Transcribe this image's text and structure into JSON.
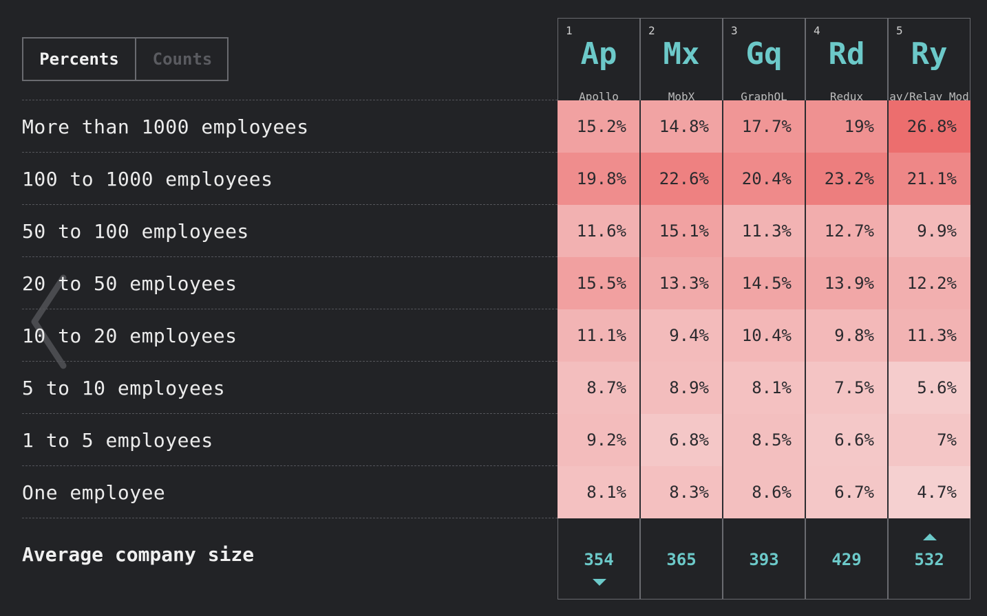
{
  "toggle": {
    "options": [
      "Percents",
      "Counts"
    ],
    "selected": "Percents"
  },
  "chart_data": {
    "type": "table",
    "columns": [
      {
        "rank": "1",
        "abbr": "Ap",
        "name": "Apollo"
      },
      {
        "rank": "2",
        "abbr": "Mx",
        "name": "MobX"
      },
      {
        "rank": "3",
        "abbr": "Gq",
        "name": "GraphQL"
      },
      {
        "rank": "4",
        "abbr": "Rd",
        "name": "Redux"
      },
      {
        "rank": "5",
        "abbr": "Ry",
        "name": "ay/Relay Mod"
      }
    ],
    "rows": [
      {
        "label": "More than 1000 employees",
        "values": [
          "15.2%",
          "14.8%",
          "17.7%",
          "19%",
          "26.8%"
        ]
      },
      {
        "label": "100 to 1000 employees",
        "values": [
          "19.8%",
          "22.6%",
          "20.4%",
          "23.2%",
          "21.1%"
        ]
      },
      {
        "label": "50 to 100 employees",
        "values": [
          "11.6%",
          "15.1%",
          "11.3%",
          "12.7%",
          "9.9%"
        ]
      },
      {
        "label": "20 to 50 employees",
        "values": [
          "15.5%",
          "13.3%",
          "14.5%",
          "13.9%",
          "12.2%"
        ]
      },
      {
        "label": "10 to 20 employees",
        "values": [
          "11.1%",
          "9.4%",
          "10.4%",
          "9.8%",
          "11.3%"
        ]
      },
      {
        "label": "5 to 10 employees",
        "values": [
          "8.7%",
          "8.9%",
          "8.1%",
          "7.5%",
          "5.6%"
        ]
      },
      {
        "label": "1 to 5 employees",
        "values": [
          "9.2%",
          "6.8%",
          "8.5%",
          "6.6%",
          "7%"
        ]
      },
      {
        "label": "One employee",
        "values": [
          "8.1%",
          "8.3%",
          "8.6%",
          "6.7%",
          "4.7%"
        ]
      }
    ],
    "footer": {
      "label": "Average company size",
      "values": [
        "354",
        "365",
        "393",
        "429",
        "532"
      ],
      "markers": [
        "down",
        "none",
        "none",
        "none",
        "up"
      ]
    },
    "color_scale": {
      "low": "#f5d0d0",
      "high": "#ec6e6e",
      "min": 4.7,
      "max": 26.8
    }
  },
  "colors": {
    "accent": "#6cc9c9",
    "background": "#222326"
  }
}
